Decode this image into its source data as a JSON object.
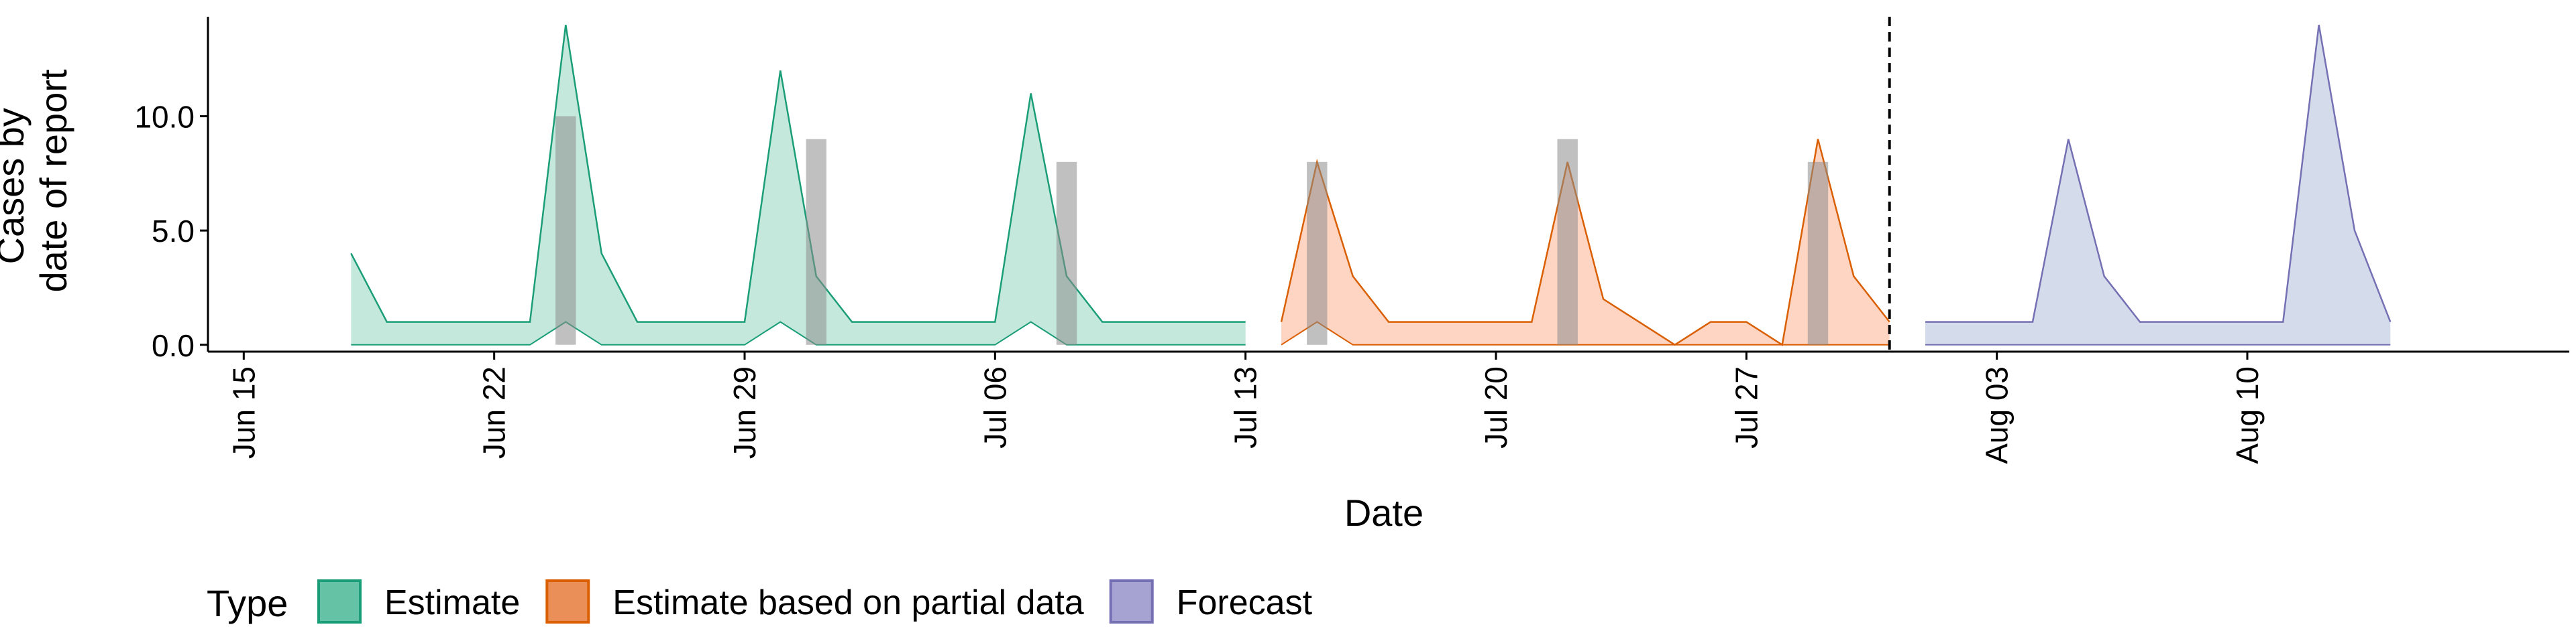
{
  "chart_data": {
    "type": "area",
    "xlabel": "Date",
    "ylabel_lines": [
      "Cases by",
      "date of report"
    ],
    "xlim": [
      "2020-06-14",
      "2020-08-19"
    ],
    "ylim": [
      -0.3,
      14.5
    ],
    "x_ticks": [
      {
        "date": "2020-06-15",
        "label": "Jun 15"
      },
      {
        "date": "2020-06-22",
        "label": "Jun 22"
      },
      {
        "date": "2020-06-29",
        "label": "Jun 29"
      },
      {
        "date": "2020-07-06",
        "label": "Jul 06"
      },
      {
        "date": "2020-07-13",
        "label": "Jul 13"
      },
      {
        "date": "2020-07-20",
        "label": "Jul 20"
      },
      {
        "date": "2020-07-27",
        "label": "Jul 27"
      },
      {
        "date": "2020-08-03",
        "label": "Aug 03"
      },
      {
        "date": "2020-08-10",
        "label": "Aug 10"
      }
    ],
    "y_ticks": [
      {
        "value": 0,
        "label": "0.0"
      },
      {
        "value": 5,
        "label": "5.0"
      },
      {
        "value": 10,
        "label": "10.0"
      }
    ],
    "forecast_date": "2020-07-31",
    "grid": false,
    "legend_position": "bottom",
    "legend_title": "Type",
    "series": [
      {
        "name": "Estimate",
        "color": "#1b9e77",
        "fill": "#66c2a5",
        "x": [
          "2020-06-18",
          "2020-06-19",
          "2020-06-20",
          "2020-06-21",
          "2020-06-22",
          "2020-06-23",
          "2020-06-24",
          "2020-06-25",
          "2020-06-26",
          "2020-06-27",
          "2020-06-28",
          "2020-06-29",
          "2020-06-30",
          "2020-07-01",
          "2020-07-02",
          "2020-07-03",
          "2020-07-04",
          "2020-07-05",
          "2020-07-06",
          "2020-07-07",
          "2020-07-08",
          "2020-07-09",
          "2020-07-10",
          "2020-07-11",
          "2020-07-12",
          "2020-07-13"
        ],
        "upper": [
          4,
          1,
          1,
          1,
          1,
          1,
          14,
          4,
          1,
          1,
          1,
          1,
          12,
          3,
          1,
          1,
          1,
          1,
          1,
          11,
          3,
          1,
          1,
          1,
          1,
          1
        ],
        "lower": [
          0,
          0,
          0,
          0,
          0,
          0,
          1,
          0,
          0,
          0,
          0,
          0,
          1,
          0,
          0,
          0,
          0,
          0,
          0,
          1,
          0,
          0,
          0,
          0,
          0,
          0
        ]
      },
      {
        "name": "Estimate based on partial data",
        "color": "#d95f02",
        "fill": "#fc8d62",
        "x": [
          "2020-07-14",
          "2020-07-15",
          "2020-07-16",
          "2020-07-17",
          "2020-07-18",
          "2020-07-19",
          "2020-07-20",
          "2020-07-21",
          "2020-07-22",
          "2020-07-23",
          "2020-07-24",
          "2020-07-25",
          "2020-07-26",
          "2020-07-27",
          "2020-07-28",
          "2020-07-29",
          "2020-07-30",
          "2020-07-31"
        ],
        "upper": [
          1,
          8,
          3,
          1,
          1,
          1,
          1,
          1,
          8,
          2,
          1,
          0,
          1,
          1,
          0,
          9,
          3,
          1
        ],
        "lower": [
          0,
          1,
          0,
          0,
          0,
          0,
          0,
          0,
          0,
          0,
          0,
          0,
          0,
          0,
          0,
          0,
          0,
          0
        ]
      },
      {
        "name": "Forecast",
        "color": "#7570b3",
        "fill": "#8da0cb",
        "x": [
          "2020-08-01",
          "2020-08-02",
          "2020-08-03",
          "2020-08-04",
          "2020-08-05",
          "2020-08-06",
          "2020-08-07",
          "2020-08-08",
          "2020-08-09",
          "2020-08-10",
          "2020-08-11",
          "2020-08-12",
          "2020-08-13",
          "2020-08-14"
        ],
        "upper": [
          1,
          1,
          1,
          1,
          9,
          3,
          1,
          1,
          1,
          1,
          1,
          14,
          5,
          1
        ],
        "lower": [
          0,
          0,
          0,
          0,
          0,
          0,
          0,
          0,
          0,
          0,
          0,
          0,
          0,
          0
        ]
      }
    ],
    "bars": {
      "color": "#8c8c8c",
      "x": [
        "2020-06-24",
        "2020-07-01",
        "2020-07-08",
        "2020-07-15",
        "2020-07-22",
        "2020-07-29"
      ],
      "values": [
        10,
        9,
        8,
        8,
        9,
        8
      ]
    },
    "legend": [
      {
        "label": "Estimate",
        "fill": "#66c2a5",
        "stroke": "#1b9e77"
      },
      {
        "label": "Estimate based on partial data",
        "fill": "#e98f57",
        "stroke": "#d95f02"
      },
      {
        "label": "Forecast",
        "fill": "#a6a2d2",
        "stroke": "#7570b3"
      }
    ]
  }
}
